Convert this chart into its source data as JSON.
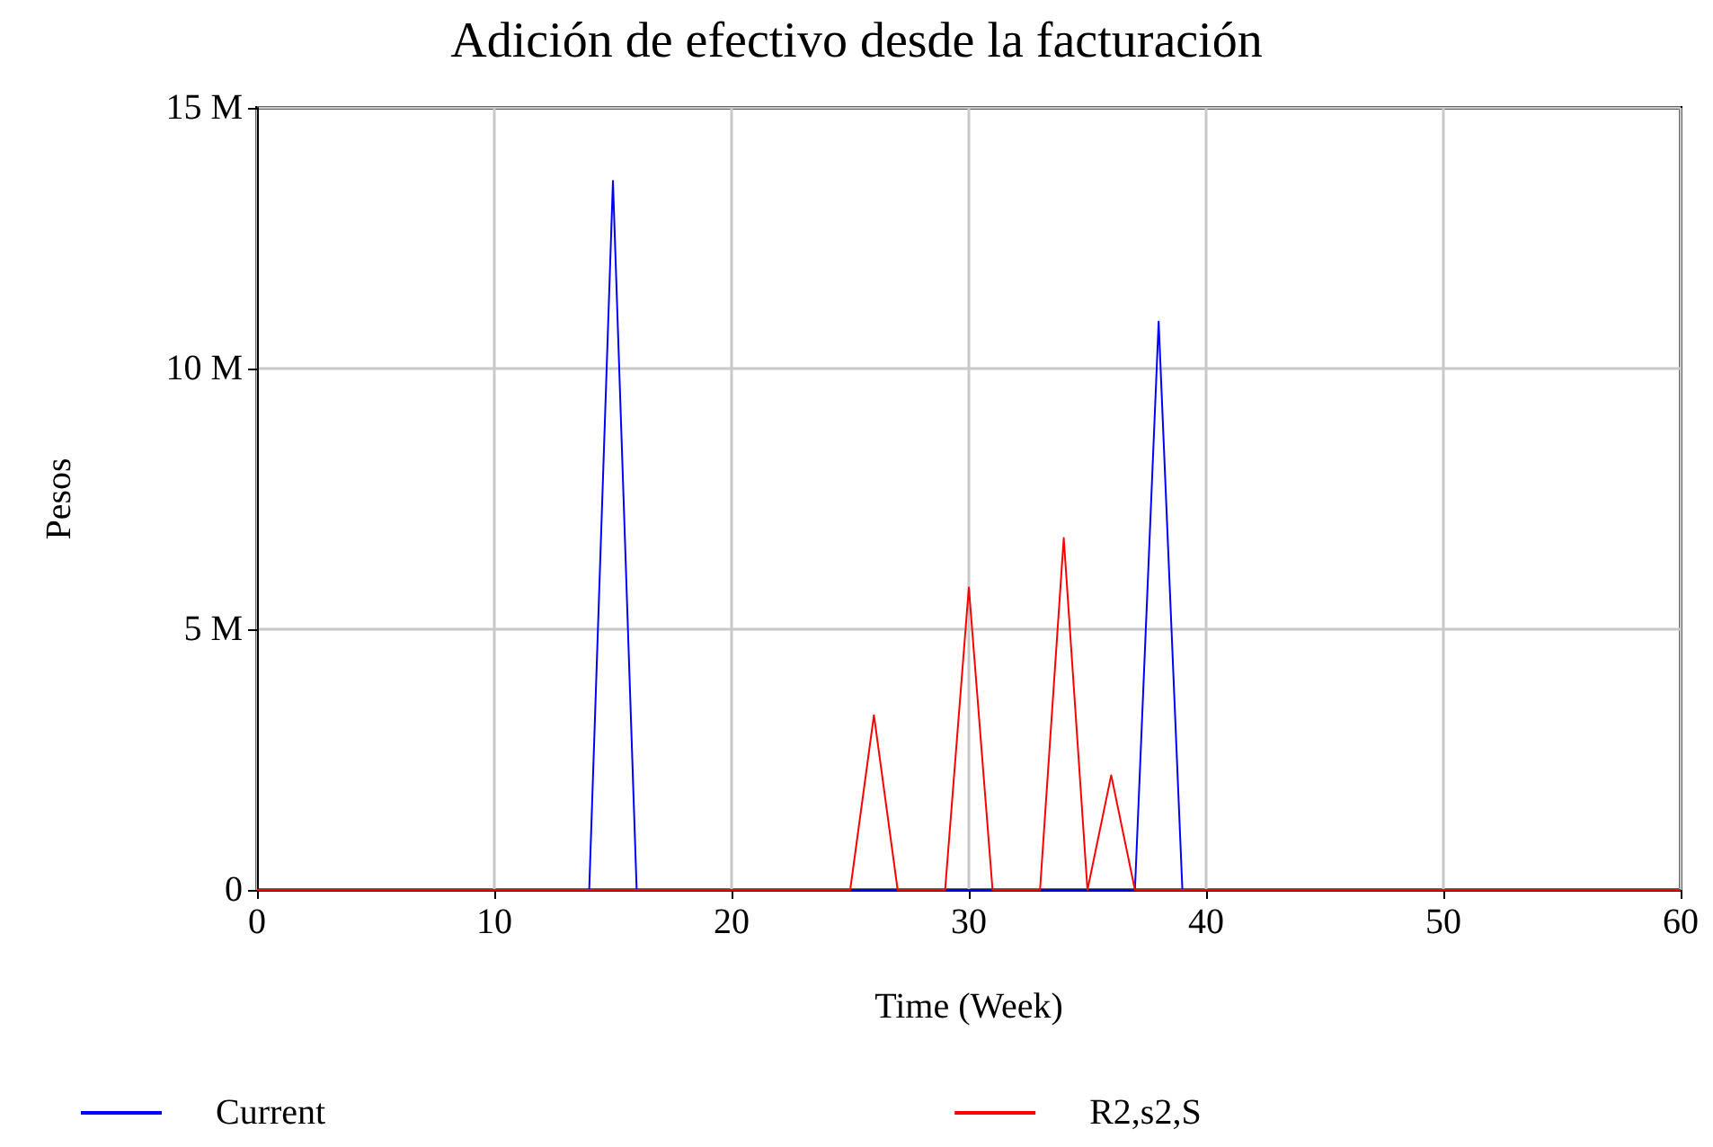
{
  "chart_data": {
    "type": "line",
    "title": "Adición de efectivo desde la facturación",
    "xlabel": "Time (Week)",
    "ylabel": "Pesos",
    "xlim": [
      0,
      60
    ],
    "xticks": [
      0,
      10,
      20,
      30,
      40,
      50,
      60
    ],
    "ylim": [
      0,
      15000000
    ],
    "yticks": [
      {
        "value": 0,
        "label": "0"
      },
      {
        "value": 5000000,
        "label": "5 M"
      },
      {
        "value": 10000000,
        "label": "10 M"
      },
      {
        "value": 15000000,
        "label": "15 M"
      }
    ],
    "grid": true,
    "legend": "bottom",
    "marker": "none",
    "line_style": "solid",
    "series": [
      {
        "name": "Current",
        "color": "#0000ff",
        "x": [
          0,
          14,
          15,
          16,
          37,
          38,
          39,
          60
        ],
        "values": [
          0,
          0,
          13600000,
          0,
          0,
          10900000,
          0,
          0
        ]
      },
      {
        "name": "R2,s2,S",
        "color": "#ff0000",
        "x": [
          0,
          25,
          26,
          27,
          29,
          30,
          31,
          33,
          34,
          35,
          36,
          37,
          60
        ],
        "values": [
          0,
          0,
          3350000,
          0,
          0,
          5800000,
          0,
          0,
          6750000,
          0,
          2200000,
          0,
          0
        ]
      }
    ]
  }
}
